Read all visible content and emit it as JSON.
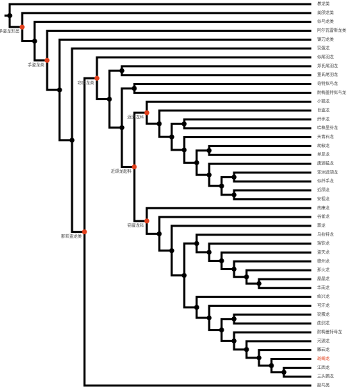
{
  "tree": {
    "children": [
      {
        "name": "暴龙类"
      },
      {
        "label": "手盗龙形类",
        "children": [
          {
            "name": "美颌龙类"
          },
          {
            "children": [
              {
                "name": "似鸟龙类"
              },
              {
                "label": "手盗龙类",
                "children": [
                  {
                    "name": "阿尔瓦雷斯龙类"
                  },
                  {
                    "children": [
                      {
                        "name": "镰刀龙类"
                      },
                      {
                        "children": [
                          {
                            "name": "窃蛋龙"
                          },
                          {
                            "label": "那若盗龙类",
                            "children": [
                              {
                                "label": "窃蛋龙类",
                                "children": [
                                  {
                                    "name": "似尾羽龙"
                                  },
                                  {
                                    "children": [
                                      {
                                        "children": [
                                          {
                                            "name": "郑氏尾羽龙"
                                          },
                                          {
                                            "name": "董氏尾羽龙"
                                          }
                                        ]
                                      },
                                      {
                                        "children": [
                                          {
                                            "children": [
                                              {
                                                "name": "奇特拟鸟龙"
                                              },
                                              {
                                                "name": "耐梅盖特拟鸟龙"
                                              }
                                            ]
                                          },
                                          {
                                            "label": "近颌龙超科",
                                            "children": [
                                              {
                                                "label": "近颌龙科",
                                                "children": [
                                                  {
                                                    "name": "小猎龙"
                                                  },
                                                  {
                                                    "children": [
                                                      {
                                                        "name": "巨盗龙"
                                                      },
                                                      {
                                                        "children": [
                                                          {
                                                            "children": [
                                                              {
                                                                "name": "纤手龙"
                                                              },
                                                              {
                                                                "name": "哈格里芬龙"
                                                              }
                                                            ]
                                                          },
                                                          {
                                                            "children": [
                                                              {
                                                                "name": "天青石龙"
                                                              },
                                                              {
                                                                "children": [
                                                                  {
                                                                    "children": [
                                                                      {
                                                                        "name": "胡椒龙"
                                                                      },
                                                                      {
                                                                        "name": "单足龙"
                                                                      }
                                                                    ]
                                                                  },
                                                                  {
                                                                    "children": [
                                                                      {
                                                                        "name": "唐逊猛龙"
                                                                      },
                                                                      {
                                                                        "children": [
                                                                          {
                                                                            "children": [
                                                                              {
                                                                                "name": "亚洲近颌龙"
                                                                              },
                                                                              {
                                                                                "name": "似纤手龙"
                                                                              }
                                                                            ]
                                                                          },
                                                                          {
                                                                            "children": [
                                                                              {
                                                                                "name": "近颌龙"
                                                                              },
                                                                              {
                                                                                "name": "安祖龙"
                                                                              }
                                                                            ]
                                                                          }
                                                                        ]
                                                                      }
                                                                    ]
                                                                  }
                                                                ]
                                                              }
                                                            ]
                                                          }
                                                        ]
                                                      }
                                                    ]
                                                  }
                                                ]
                                              },
                                              {
                                                "label": "窃蛋龙科",
                                                "children": [
                                                  {
                                                    "name": "南康龙"
                                                  },
                                                  {
                                                    "children": [
                                                      {
                                                        "name": "谷雀龙"
                                                      },
                                                      {
                                                        "children": [
                                                          {
                                                            "name": "葬龙"
                                                          },
                                                          {
                                                            "children": [
                                                              {
                                                                "children": [
                                                                  {
                                                                    "name": "乌拉特龙"
                                                                  },
                                                                  {
                                                                    "children": [
                                                                      {
                                                                        "name": "瑞钦龙"
                                                                      },
                                                                      {
                                                                        "children": [
                                                                          {
                                                                            "name": "盗天龙"
                                                                          },
                                                                          {
                                                                            "children": [
                                                                              {
                                                                                "name": "赣州龙"
                                                                              },
                                                                              {
                                                                                "children": [
                                                                                  {
                                                                                    "name": "那火龙"
                                                                                  },
                                                                                  {
                                                                                    "children": [
                                                                                      {
                                                                                        "name": "屋晶龙"
                                                                                      },
                                                                                      {
                                                                                        "name": "华南龙"
                                                                                      }
                                                                                    ]
                                                                                  }
                                                                                ]
                                                                              }
                                                                            ]
                                                                          }
                                                                        ]
                                                                      }
                                                                    ]
                                                                  }
                                                                ]
                                                              },
                                                              {
                                                                "children": [
                                                                  {
                                                                    "name": "始兴龙"
                                                                  },
                                                                  {
                                                                    "children": [
                                                                      {
                                                                        "name": "可汗龙"
                                                                      },
                                                                      {
                                                                        "children": [
                                                                          {
                                                                            "children": [
                                                                              {
                                                                                "name": "窃蛋龙"
                                                                              },
                                                                              {
                                                                                "name": "曲剑龙"
                                                                              }
                                                                            ]
                                                                          },
                                                                          {
                                                                            "children": [
                                                                              {
                                                                                "name": "耐梅盖特母龙"
                                                                              },
                                                                              {
                                                                                "children": [
                                                                                  {
                                                                                    "name": "河源龙"
                                                                                  },
                                                                                  {
                                                                                    "children": [
                                                                                      {
                                                                                        "name": "雕岩龙"
                                                                                      },
                                                                                      {
                                                                                        "children": [
                                                                                          {
                                                                                            "name": "斑嵴龙",
                                                                                            "highlight": true
                                                                                          },
                                                                                          {
                                                                                            "children": [
                                                                                              {
                                                                                                "name": "江西龙"
                                                                                              },
                                                                                              {
                                                                                                "name": "三头鹦龙"
                                                                                              }
                                                                                            ]
                                                                                          }
                                                                                        ]
                                                                                      }
                                                                                    ]
                                                                                  }
                                                                                ]
                                                                              }
                                                                            ]
                                                                          }
                                                                        ]
                                                                      }
                                                                    ]
                                                                  }
                                                                ]
                                                              }
                                                            ]
                                                          }
                                                        ]
                                                      }
                                                    ]
                                                  }
                                                ]
                                              }
                                            ]
                                          }
                                        ]
                                      }
                                    ]
                                  }
                                ]
                              },
                              {
                                "name": "副鸟类"
                              }
                            ]
                          }
                        ]
                      }
                    ]
                  }
                ]
              }
            ]
          }
        ]
      }
    ]
  }
}
